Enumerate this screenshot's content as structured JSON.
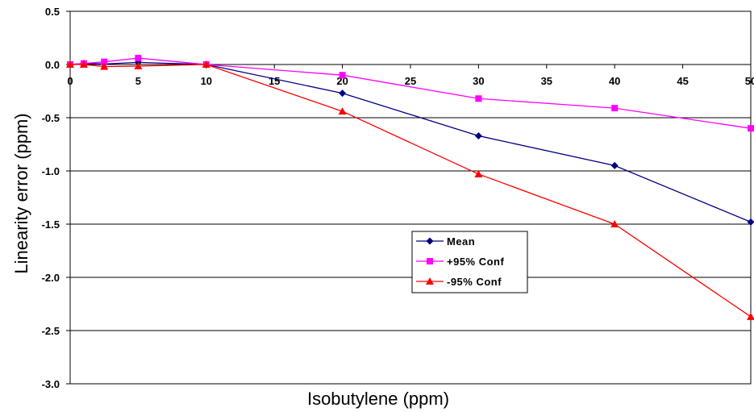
{
  "chart_data": {
    "type": "line",
    "title": "",
    "xlabel": "Isobutylene (ppm)",
    "ylabel": "Linearity error (ppm)",
    "xlim": [
      0,
      50
    ],
    "ylim": [
      -3.0,
      0.5
    ],
    "x_ticks": [
      0,
      5,
      10,
      15,
      20,
      25,
      30,
      35,
      40,
      45,
      50
    ],
    "x_tick_labels": [
      "0",
      "5",
      "10",
      "15",
      "20",
      "25",
      "30",
      "35",
      "40",
      "45",
      "50"
    ],
    "y_ticks": [
      0.5,
      0.0,
      -0.5,
      -1.0,
      -1.5,
      -2.0,
      -2.5,
      -3.0
    ],
    "y_tick_labels": [
      "0.5",
      "0.0",
      "-0.5",
      "-1.0",
      "-1.5",
      "-2.0",
      "-2.5",
      "-3.0"
    ],
    "grid": "horizontal",
    "legend_position": "center",
    "series": [
      {
        "name": "Mean",
        "color": "#000080",
        "marker": "diamond",
        "x": [
          0,
          1,
          2.5,
          5,
          10,
          20,
          30,
          40,
          50
        ],
        "y": [
          0.0,
          0.01,
          0.005,
          0.02,
          0.0,
          -0.27,
          -0.67,
          -0.95,
          -1.48
        ]
      },
      {
        "name": "+95% Conf",
        "color": "#ff00ff",
        "marker": "square",
        "x": [
          0,
          1,
          2.5,
          5,
          10,
          20,
          30,
          40,
          50
        ],
        "y": [
          0.0,
          0.01,
          0.025,
          0.06,
          0.0,
          -0.1,
          -0.32,
          -0.41,
          -0.6
        ]
      },
      {
        "name": "-95% Conf",
        "color": "#ff0000",
        "marker": "triangle",
        "x": [
          0,
          1,
          2.5,
          5,
          10,
          20,
          30,
          40,
          50
        ],
        "y": [
          0.0,
          0.0,
          -0.02,
          -0.015,
          0.0,
          -0.44,
          -1.03,
          -1.5,
          -2.37
        ]
      }
    ]
  }
}
